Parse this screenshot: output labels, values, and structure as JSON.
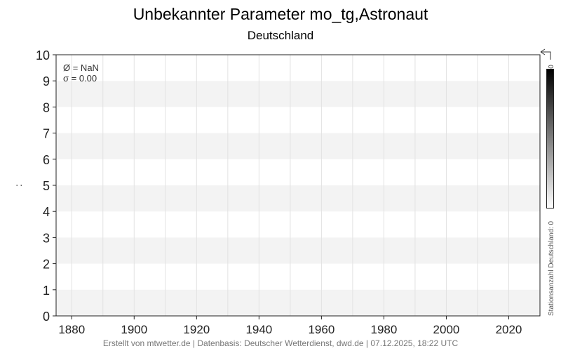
{
  "chart_data": {
    "type": "line",
    "title": "Unbekannter Parameter mo_tg,Astronaut",
    "subtitle": "Deutschland",
    "xlabel": "",
    "ylabel": ":",
    "xlim": [
      1875,
      2030
    ],
    "ylim": [
      0,
      10
    ],
    "xticks": [
      1880,
      1900,
      1920,
      1940,
      1960,
      1980,
      2000,
      2020
    ],
    "yticks": [
      0,
      1,
      2,
      3,
      4,
      5,
      6,
      7,
      8,
      9,
      10
    ],
    "grid": true,
    "series": [],
    "annotations": {
      "mean": "Ø = NaN",
      "sigma": "σ = 0.00"
    },
    "colorbar": {
      "label": "Stationsanzahl Deutschland: 0",
      "max_label": "0",
      "colors": [
        "#000000",
        "#ffffff"
      ]
    }
  },
  "footer": "Erstellt von mtwetter.de | Datenbasis: Deutscher Wetterdienst, dwd.de | 07.12.2025, 18:22 UTC"
}
